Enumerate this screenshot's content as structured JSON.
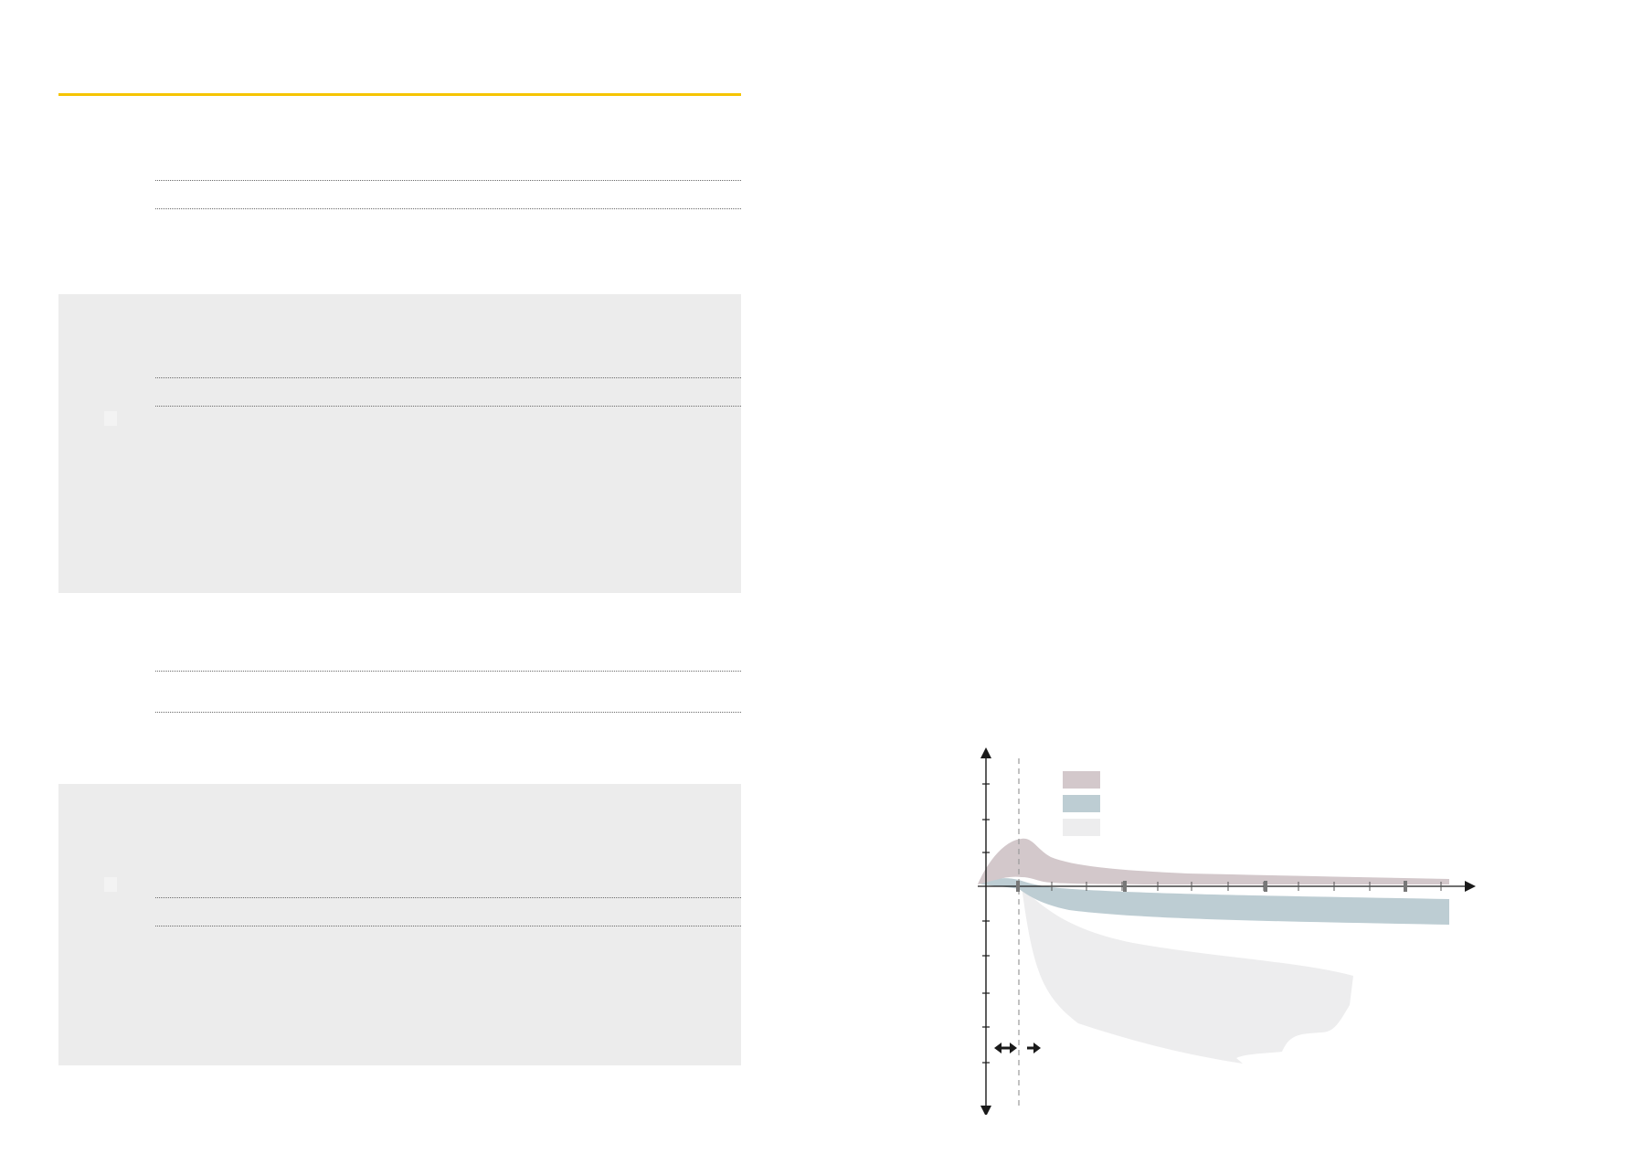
{
  "page": {
    "accent_color": "#f5c400",
    "panel_color": "#ececec"
  },
  "figure": {
    "legend": [
      {
        "color": "#d3c8cb"
      },
      {
        "color": "#bdcdd3"
      },
      {
        "color": "#ededee"
      }
    ],
    "band_colors": {
      "upper": "#d3c8cb",
      "middle": "#bdcdd3",
      "lower": "#ededee"
    },
    "axis_color": "#1a1a1a",
    "divider_color": "#9a9a9a"
  }
}
